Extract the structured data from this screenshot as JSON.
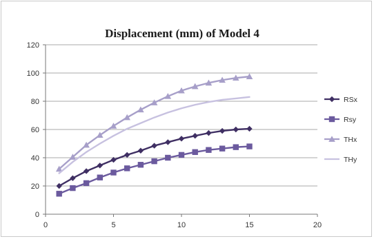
{
  "chart_data": {
    "type": "line",
    "title": "Displacement (mm) of Model 4",
    "xlabel": "",
    "ylabel": "",
    "xlim": [
      0,
      20
    ],
    "ylim": [
      0,
      120
    ],
    "x_ticks": [
      0,
      5,
      10,
      15,
      20
    ],
    "y_ticks": [
      0,
      20,
      40,
      60,
      80,
      100,
      120
    ],
    "x_tick_labels": [
      "0",
      "5",
      "10",
      "15",
      "20"
    ],
    "y_tick_labels": [
      "0",
      "20",
      "40",
      "60",
      "80",
      "100",
      "120"
    ],
    "grid": "horizontal",
    "legend_position": "right",
    "x": [
      1,
      2,
      3,
      4,
      5,
      6,
      7,
      8,
      9,
      10,
      11,
      12,
      13,
      14,
      15
    ],
    "series": [
      {
        "name": "RSx",
        "color": "#3f2f63",
        "marker": "diamond",
        "values": [
          20,
          25.5,
          30.5,
          34.5,
          38.5,
          42,
          45,
          48.5,
          51,
          53.5,
          55.5,
          57.5,
          59,
          60,
          60.5
        ]
      },
      {
        "name": "Rsy",
        "color": "#6b5a9e",
        "marker": "square",
        "values": [
          14.5,
          18.5,
          22,
          26,
          29.5,
          32.5,
          35,
          37.5,
          40,
          42,
          44,
          45.5,
          46.5,
          47.5,
          48
        ]
      },
      {
        "name": "THx",
        "color": "#a79fc9",
        "marker": "triangle",
        "values": [
          32,
          40.5,
          49,
          56,
          62.5,
          68.5,
          74,
          79,
          83.5,
          87.5,
          90.5,
          93,
          95,
          96.5,
          97.5
        ]
      },
      {
        "name": "THy",
        "color": "#c7c1e0",
        "marker": "none",
        "values": [
          29,
          37,
          44,
          50,
          55.5,
          60.5,
          64.5,
          68.5,
          72,
          75,
          77.5,
          79.5,
          81,
          82,
          83
        ]
      }
    ]
  }
}
